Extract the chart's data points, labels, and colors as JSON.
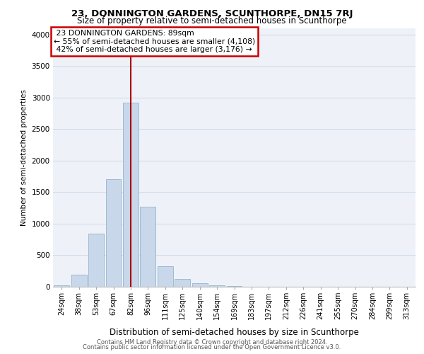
{
  "title_main": "23, DONNINGTON GARDENS, SCUNTHORPE, DN15 7RJ",
  "title_sub": "Size of property relative to semi-detached houses in Scunthorpe",
  "xlabel": "Distribution of semi-detached houses by size in Scunthorpe",
  "ylabel": "Number of semi-detached properties",
  "footnote1": "Contains HM Land Registry data © Crown copyright and database right 2024.",
  "footnote2": "Contains public sector information licensed under the Open Government Licence v3.0.",
  "property_label": "23 DONNINGTON GARDENS: 89sqm",
  "pct_smaller": 55,
  "n_smaller": 4108,
  "pct_larger": 42,
  "n_larger": 3176,
  "bar_color": "#c8d8ea",
  "bar_edge_color": "#96b4cc",
  "highlight_line_color": "#aa0000",
  "annotation_box_edge": "#cc0000",
  "categories": [
    "24sqm",
    "38sqm",
    "53sqm",
    "67sqm",
    "82sqm",
    "96sqm",
    "111sqm",
    "125sqm",
    "140sqm",
    "154sqm",
    "169sqm",
    "183sqm",
    "197sqm",
    "212sqm",
    "226sqm",
    "241sqm",
    "255sqm",
    "270sqm",
    "284sqm",
    "299sqm",
    "313sqm"
  ],
  "values": [
    20,
    190,
    840,
    1710,
    2920,
    1270,
    325,
    120,
    60,
    25,
    10,
    4,
    3,
    2,
    1,
    1,
    1,
    0,
    0,
    0,
    0
  ],
  "ylim": [
    0,
    4100
  ],
  "yticks": [
    0,
    500,
    1000,
    1500,
    2000,
    2500,
    3000,
    3500,
    4000
  ],
  "grid_color": "#ccd8e8",
  "bg_color": "#eef2f8",
  "highlight_bar_index": 4,
  "red_line_x": 4
}
